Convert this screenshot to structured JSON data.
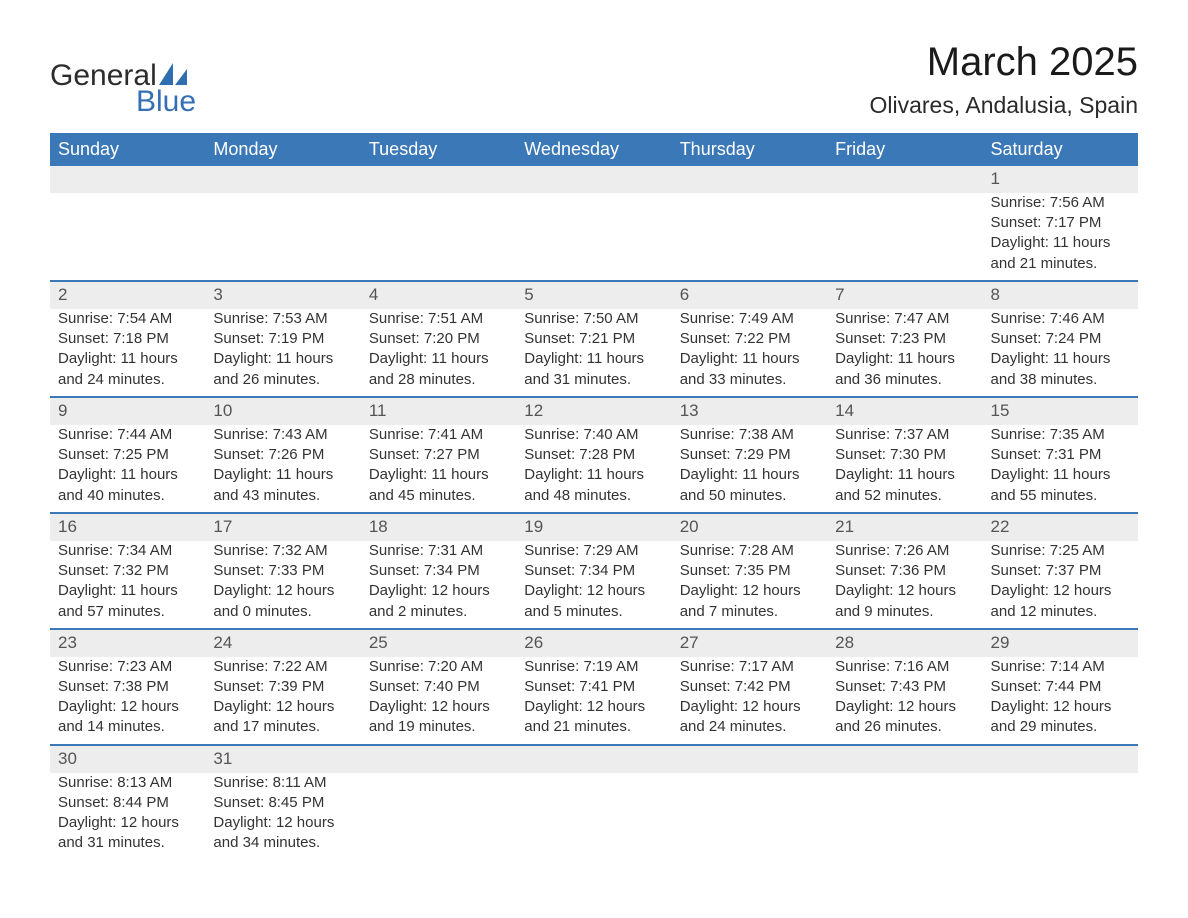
{
  "brand": {
    "general": "General",
    "blue": "Blue",
    "sail_color": "#2f6fb0"
  },
  "title": "March 2025",
  "location": "Olivares, Andalusia, Spain",
  "colors": {
    "header_bg": "#3a78b8",
    "header_text": "#ffffff",
    "daynum_bg": "#ededed",
    "row_divider": "#3a78b8",
    "body_text": "#333333",
    "title_text": "#1a1a1a"
  },
  "typography": {
    "title_fontsize": 40,
    "location_fontsize": 23,
    "header_fontsize": 18,
    "daynum_fontsize": 17,
    "detail_fontsize": 15
  },
  "day_headers": [
    "Sunday",
    "Monday",
    "Tuesday",
    "Wednesday",
    "Thursday",
    "Friday",
    "Saturday"
  ],
  "weeks": [
    [
      null,
      null,
      null,
      null,
      null,
      null,
      {
        "n": "1",
        "sr": "Sunrise: 7:56 AM",
        "ss": "Sunset: 7:17 PM",
        "d1": "Daylight: 11 hours",
        "d2": "and 21 minutes."
      }
    ],
    [
      {
        "n": "2",
        "sr": "Sunrise: 7:54 AM",
        "ss": "Sunset: 7:18 PM",
        "d1": "Daylight: 11 hours",
        "d2": "and 24 minutes."
      },
      {
        "n": "3",
        "sr": "Sunrise: 7:53 AM",
        "ss": "Sunset: 7:19 PM",
        "d1": "Daylight: 11 hours",
        "d2": "and 26 minutes."
      },
      {
        "n": "4",
        "sr": "Sunrise: 7:51 AM",
        "ss": "Sunset: 7:20 PM",
        "d1": "Daylight: 11 hours",
        "d2": "and 28 minutes."
      },
      {
        "n": "5",
        "sr": "Sunrise: 7:50 AM",
        "ss": "Sunset: 7:21 PM",
        "d1": "Daylight: 11 hours",
        "d2": "and 31 minutes."
      },
      {
        "n": "6",
        "sr": "Sunrise: 7:49 AM",
        "ss": "Sunset: 7:22 PM",
        "d1": "Daylight: 11 hours",
        "d2": "and 33 minutes."
      },
      {
        "n": "7",
        "sr": "Sunrise: 7:47 AM",
        "ss": "Sunset: 7:23 PM",
        "d1": "Daylight: 11 hours",
        "d2": "and 36 minutes."
      },
      {
        "n": "8",
        "sr": "Sunrise: 7:46 AM",
        "ss": "Sunset: 7:24 PM",
        "d1": "Daylight: 11 hours",
        "d2": "and 38 minutes."
      }
    ],
    [
      {
        "n": "9",
        "sr": "Sunrise: 7:44 AM",
        "ss": "Sunset: 7:25 PM",
        "d1": "Daylight: 11 hours",
        "d2": "and 40 minutes."
      },
      {
        "n": "10",
        "sr": "Sunrise: 7:43 AM",
        "ss": "Sunset: 7:26 PM",
        "d1": "Daylight: 11 hours",
        "d2": "and 43 minutes."
      },
      {
        "n": "11",
        "sr": "Sunrise: 7:41 AM",
        "ss": "Sunset: 7:27 PM",
        "d1": "Daylight: 11 hours",
        "d2": "and 45 minutes."
      },
      {
        "n": "12",
        "sr": "Sunrise: 7:40 AM",
        "ss": "Sunset: 7:28 PM",
        "d1": "Daylight: 11 hours",
        "d2": "and 48 minutes."
      },
      {
        "n": "13",
        "sr": "Sunrise: 7:38 AM",
        "ss": "Sunset: 7:29 PM",
        "d1": "Daylight: 11 hours",
        "d2": "and 50 minutes."
      },
      {
        "n": "14",
        "sr": "Sunrise: 7:37 AM",
        "ss": "Sunset: 7:30 PM",
        "d1": "Daylight: 11 hours",
        "d2": "and 52 minutes."
      },
      {
        "n": "15",
        "sr": "Sunrise: 7:35 AM",
        "ss": "Sunset: 7:31 PM",
        "d1": "Daylight: 11 hours",
        "d2": "and 55 minutes."
      }
    ],
    [
      {
        "n": "16",
        "sr": "Sunrise: 7:34 AM",
        "ss": "Sunset: 7:32 PM",
        "d1": "Daylight: 11 hours",
        "d2": "and 57 minutes."
      },
      {
        "n": "17",
        "sr": "Sunrise: 7:32 AM",
        "ss": "Sunset: 7:33 PM",
        "d1": "Daylight: 12 hours",
        "d2": "and 0 minutes."
      },
      {
        "n": "18",
        "sr": "Sunrise: 7:31 AM",
        "ss": "Sunset: 7:34 PM",
        "d1": "Daylight: 12 hours",
        "d2": "and 2 minutes."
      },
      {
        "n": "19",
        "sr": "Sunrise: 7:29 AM",
        "ss": "Sunset: 7:34 PM",
        "d1": "Daylight: 12 hours",
        "d2": "and 5 minutes."
      },
      {
        "n": "20",
        "sr": "Sunrise: 7:28 AM",
        "ss": "Sunset: 7:35 PM",
        "d1": "Daylight: 12 hours",
        "d2": "and 7 minutes."
      },
      {
        "n": "21",
        "sr": "Sunrise: 7:26 AM",
        "ss": "Sunset: 7:36 PM",
        "d1": "Daylight: 12 hours",
        "d2": "and 9 minutes."
      },
      {
        "n": "22",
        "sr": "Sunrise: 7:25 AM",
        "ss": "Sunset: 7:37 PM",
        "d1": "Daylight: 12 hours",
        "d2": "and 12 minutes."
      }
    ],
    [
      {
        "n": "23",
        "sr": "Sunrise: 7:23 AM",
        "ss": "Sunset: 7:38 PM",
        "d1": "Daylight: 12 hours",
        "d2": "and 14 minutes."
      },
      {
        "n": "24",
        "sr": "Sunrise: 7:22 AM",
        "ss": "Sunset: 7:39 PM",
        "d1": "Daylight: 12 hours",
        "d2": "and 17 minutes."
      },
      {
        "n": "25",
        "sr": "Sunrise: 7:20 AM",
        "ss": "Sunset: 7:40 PM",
        "d1": "Daylight: 12 hours",
        "d2": "and 19 minutes."
      },
      {
        "n": "26",
        "sr": "Sunrise: 7:19 AM",
        "ss": "Sunset: 7:41 PM",
        "d1": "Daylight: 12 hours",
        "d2": "and 21 minutes."
      },
      {
        "n": "27",
        "sr": "Sunrise: 7:17 AM",
        "ss": "Sunset: 7:42 PM",
        "d1": "Daylight: 12 hours",
        "d2": "and 24 minutes."
      },
      {
        "n": "28",
        "sr": "Sunrise: 7:16 AM",
        "ss": "Sunset: 7:43 PM",
        "d1": "Daylight: 12 hours",
        "d2": "and 26 minutes."
      },
      {
        "n": "29",
        "sr": "Sunrise: 7:14 AM",
        "ss": "Sunset: 7:44 PM",
        "d1": "Daylight: 12 hours",
        "d2": "and 29 minutes."
      }
    ],
    [
      {
        "n": "30",
        "sr": "Sunrise: 8:13 AM",
        "ss": "Sunset: 8:44 PM",
        "d1": "Daylight: 12 hours",
        "d2": "and 31 minutes."
      },
      {
        "n": "31",
        "sr": "Sunrise: 8:11 AM",
        "ss": "Sunset: 8:45 PM",
        "d1": "Daylight: 12 hours",
        "d2": "and 34 minutes."
      },
      null,
      null,
      null,
      null,
      null
    ]
  ]
}
